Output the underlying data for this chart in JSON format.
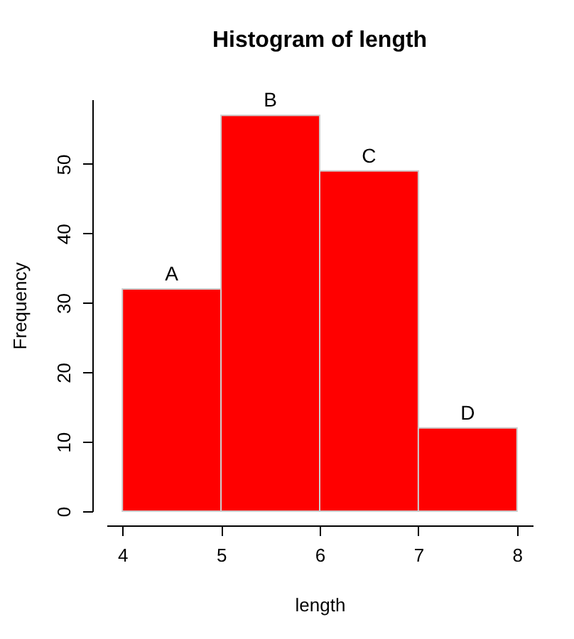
{
  "chart_data": {
    "type": "histogram",
    "title": "Histogram of length",
    "xlabel": "length",
    "ylabel": "Frequency",
    "bins": [
      4,
      5,
      6,
      7,
      8
    ],
    "values": [
      32,
      57,
      49,
      12
    ],
    "value_labels": [
      "A",
      "B",
      "C",
      "D"
    ],
    "color": "#ff0000",
    "xlim": [
      3.84,
      8.16
    ],
    "xticks": [
      4,
      5,
      6,
      7,
      8
    ],
    "ylim": [
      0,
      59.3
    ],
    "yticks": [
      0,
      10,
      20,
      30,
      40,
      50
    ],
    "grid": false
  }
}
